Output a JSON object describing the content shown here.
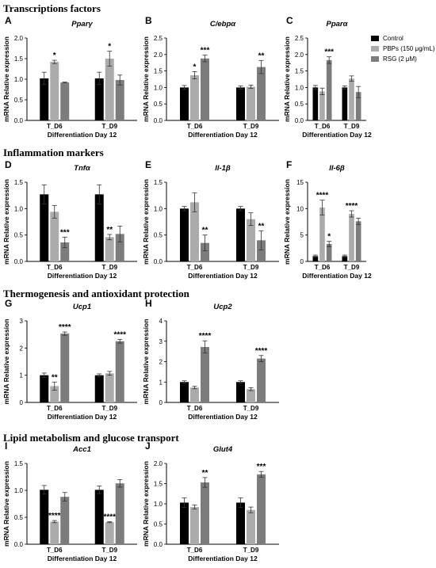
{
  "sections": [
    "Transcriptions factors",
    "Inflammation markers",
    "Thermogenesis and antioxidant protection",
    "Lipid metabolism and glucose transport"
  ],
  "legend": [
    {
      "label": "Control",
      "color": "#000000"
    },
    {
      "label": "PBPs (150 μg/mL)",
      "color": "#ababab"
    },
    {
      "label": "RSG (2 μM)",
      "color": "#7c7c7c"
    }
  ],
  "chart_data": [
    {
      "type": "bar",
      "panel": "A",
      "title": "Pparγ",
      "xlabel": "Differentiation Day 12",
      "ylabel": "mRNA Relative expression",
      "categories": [
        "T_D6",
        "T_D9"
      ],
      "ylim": [
        0,
        2.0
      ],
      "yticks": [
        "0.0",
        "0.5",
        "1.0",
        "1.5",
        "2.0"
      ],
      "series": [
        {
          "name": "Control",
          "values": [
            1.02,
            1.02
          ],
          "errors": [
            0.15,
            0.15
          ]
        },
        {
          "name": "PBPs (150 μg/mL)",
          "values": [
            1.42,
            1.5
          ],
          "errors": [
            0.04,
            0.18
          ]
        },
        {
          "name": "RSG (2 μM)",
          "values": [
            0.92,
            0.98
          ],
          "errors": [
            0.01,
            0.12
          ]
        }
      ],
      "significance": [
        {
          "group": 0,
          "series": 1,
          "label": "*"
        },
        {
          "group": 1,
          "series": 1,
          "label": "*"
        }
      ]
    },
    {
      "type": "bar",
      "panel": "B",
      "title": "C/ebpα",
      "xlabel": "Differentiation Day 12",
      "ylabel": "mRNA Relative expression",
      "categories": [
        "T_D6",
        "T_D9"
      ],
      "ylim": [
        0,
        2.5
      ],
      "yticks": [
        "0.0",
        "0.5",
        "1.0",
        "1.5",
        "2.0",
        "2.5"
      ],
      "series": [
        {
          "name": "Control",
          "values": [
            1.0,
            1.0
          ],
          "errors": [
            0.06,
            0.05
          ]
        },
        {
          "name": "PBPs (150 μg/mL)",
          "values": [
            1.37,
            1.02
          ],
          "errors": [
            0.11,
            0.05
          ]
        },
        {
          "name": "RSG (2 μM)",
          "values": [
            1.88,
            1.62
          ],
          "errors": [
            0.1,
            0.2
          ]
        }
      ],
      "significance": [
        {
          "group": 0,
          "series": 1,
          "label": "*"
        },
        {
          "group": 0,
          "series": 2,
          "label": "***"
        },
        {
          "group": 1,
          "series": 2,
          "label": "**"
        }
      ]
    },
    {
      "type": "bar",
      "panel": "C",
      "title": "Pparα",
      "xlabel": "Differentiation Day 12",
      "ylabel": "mRNA Relative expression",
      "categories": [
        "T_D6",
        "T_D9"
      ],
      "ylim": [
        0,
        2.5
      ],
      "yticks": [
        "0.0",
        "0.5",
        "1.0",
        "1.5",
        "2.0",
        "2.5"
      ],
      "series": [
        {
          "name": "Control",
          "values": [
            1.0,
            1.0
          ],
          "errors": [
            0.06,
            0.05
          ]
        },
        {
          "name": "PBPs (150 μg/mL)",
          "values": [
            0.88,
            1.27
          ],
          "errors": [
            0.1,
            0.08
          ]
        },
        {
          "name": "RSG (2 μM)",
          "values": [
            1.83,
            0.86
          ],
          "errors": [
            0.1,
            0.17
          ]
        }
      ],
      "significance": [
        {
          "group": 0,
          "series": 2,
          "label": "***"
        }
      ]
    },
    {
      "type": "bar",
      "panel": "D",
      "title": "Tnfα",
      "xlabel": "Differentiation Day 12",
      "ylabel": "mRNA Relative expression",
      "categories": [
        "T_D6",
        "T_D9"
      ],
      "ylim": [
        0,
        1.5
      ],
      "yticks": [
        "0.0",
        "0.5",
        "1.0",
        "1.5"
      ],
      "series": [
        {
          "name": "Control",
          "values": [
            1.27,
            1.27
          ],
          "errors": [
            0.18,
            0.18
          ]
        },
        {
          "name": "PBPs (150 μg/mL)",
          "values": [
            0.94,
            0.46
          ],
          "errors": [
            0.12,
            0.05
          ]
        },
        {
          "name": "RSG (2 μM)",
          "values": [
            0.36,
            0.52
          ],
          "errors": [
            0.1,
            0.15
          ]
        }
      ],
      "significance": [
        {
          "group": 0,
          "series": 2,
          "label": "***"
        },
        {
          "group": 1,
          "series": 1,
          "label": "**"
        }
      ]
    },
    {
      "type": "bar",
      "panel": "E",
      "title": "Il-1β",
      "xlabel": "Differentiation Day 12",
      "ylabel": "mRNA Relative expression",
      "categories": [
        "T_D6",
        "T_D9"
      ],
      "ylim": [
        0,
        1.5
      ],
      "yticks": [
        "0.0",
        "0.5",
        "1.0",
        "1.5"
      ],
      "series": [
        {
          "name": "Control",
          "values": [
            1.0,
            1.0
          ],
          "errors": [
            0.04,
            0.04
          ]
        },
        {
          "name": "PBPs (150 μg/mL)",
          "values": [
            1.12,
            0.8
          ],
          "errors": [
            0.18,
            0.12
          ]
        },
        {
          "name": "RSG (2 μM)",
          "values": [
            0.35,
            0.4
          ],
          "errors": [
            0.15,
            0.18
          ]
        }
      ],
      "significance": [
        {
          "group": 0,
          "series": 2,
          "label": "**"
        },
        {
          "group": 1,
          "series": 2,
          "label": "**"
        }
      ]
    },
    {
      "type": "bar",
      "panel": "F",
      "title": "Il-6β",
      "xlabel": "Differentiation Day 12",
      "ylabel": "mRNA Relative expression",
      "categories": [
        "T_D6",
        "T_D9"
      ],
      "ylim": [
        0,
        15
      ],
      "yticks": [
        "0",
        "5",
        "10",
        "15"
      ],
      "series": [
        {
          "name": "Control",
          "values": [
            1.0,
            1.0
          ],
          "errors": [
            0.2,
            0.2
          ]
        },
        {
          "name": "PBPs (150 μg/mL)",
          "values": [
            10.2,
            9.0
          ],
          "errors": [
            1.4,
            0.6
          ]
        },
        {
          "name": "RSG (2 μM)",
          "values": [
            3.3,
            7.6
          ],
          "errors": [
            0.5,
            0.6
          ]
        }
      ],
      "significance": [
        {
          "group": 0,
          "series": 1,
          "label": "****"
        },
        {
          "group": 0,
          "series": 2,
          "label": "*"
        },
        {
          "group": 1,
          "series": 1,
          "label": "****"
        }
      ]
    },
    {
      "type": "bar",
      "panel": "G",
      "title": "Ucp1",
      "xlabel": "Differentiation Day 12",
      "ylabel": "mRNA Relative expression",
      "categories": [
        "T_D6",
        "T_D9"
      ],
      "ylim": [
        0,
        3
      ],
      "yticks": [
        "0",
        "1",
        "2",
        "3"
      ],
      "series": [
        {
          "name": "Control",
          "values": [
            1.0,
            1.0
          ],
          "errors": [
            0.08,
            0.05
          ]
        },
        {
          "name": "PBPs (150 μg/mL)",
          "values": [
            0.6,
            1.07
          ],
          "errors": [
            0.15,
            0.07
          ]
        },
        {
          "name": "RSG (2 μM)",
          "values": [
            2.53,
            2.25
          ],
          "errors": [
            0.06,
            0.07
          ]
        }
      ],
      "significance": [
        {
          "group": 0,
          "series": 1,
          "label": "**"
        },
        {
          "group": 0,
          "series": 2,
          "label": "****"
        },
        {
          "group": 1,
          "series": 2,
          "label": "****"
        }
      ]
    },
    {
      "type": "bar",
      "panel": "H",
      "title": "Ucp2",
      "xlabel": "Differentiation Day 12",
      "ylabel": "mRNA Relative expression",
      "categories": [
        "T_D6",
        "T_D9"
      ],
      "ylim": [
        0,
        4
      ],
      "yticks": [
        "0",
        "1",
        "2",
        "3",
        "4"
      ],
      "series": [
        {
          "name": "Control",
          "values": [
            1.0,
            1.0
          ],
          "errors": [
            0.06,
            0.06
          ]
        },
        {
          "name": "PBPs (150 μg/mL)",
          "values": [
            0.73,
            0.65
          ],
          "errors": [
            0.06,
            0.07
          ]
        },
        {
          "name": "RSG (2 μM)",
          "values": [
            2.72,
            2.15
          ],
          "errors": [
            0.3,
            0.15
          ]
        }
      ],
      "significance": [
        {
          "group": 0,
          "series": 2,
          "label": "****"
        },
        {
          "group": 1,
          "series": 2,
          "label": "****"
        }
      ]
    },
    {
      "type": "bar",
      "panel": "I",
      "title": "Acc1",
      "xlabel": "Differentiation Day 12",
      "ylabel": "mRNA Relative expression",
      "categories": [
        "T_D6",
        "T_D9"
      ],
      "ylim": [
        0,
        1.5
      ],
      "yticks": [
        "0.0",
        "0.5",
        "1.0",
        "1.5"
      ],
      "series": [
        {
          "name": "Control",
          "values": [
            1.01,
            1.01
          ],
          "errors": [
            0.08,
            0.07
          ]
        },
        {
          "name": "PBPs (150 μg/mL)",
          "values": [
            0.42,
            0.41
          ],
          "errors": [
            0.02,
            0.01
          ]
        },
        {
          "name": "RSG (2 μM)",
          "values": [
            0.88,
            1.13
          ],
          "errors": [
            0.08,
            0.07
          ]
        }
      ],
      "significance": [
        {
          "group": 0,
          "series": 1,
          "label": "****"
        },
        {
          "group": 1,
          "series": 1,
          "label": "****"
        }
      ]
    },
    {
      "type": "bar",
      "panel": "J",
      "title": "Glut4",
      "xlabel": "Differentiation Day 12",
      "ylabel": "mRNA Relative expression",
      "categories": [
        "T_D6",
        "T_D9"
      ],
      "ylim": [
        0,
        2.0
      ],
      "yticks": [
        "0.0",
        "0.5",
        "1.0",
        "1.5",
        "2.0"
      ],
      "series": [
        {
          "name": "Control",
          "values": [
            1.03,
            1.03
          ],
          "errors": [
            0.12,
            0.12
          ]
        },
        {
          "name": "PBPs (150 μg/mL)",
          "values": [
            0.92,
            0.85
          ],
          "errors": [
            0.05,
            0.07
          ]
        },
        {
          "name": "RSG (2 μM)",
          "values": [
            1.53,
            1.73
          ],
          "errors": [
            0.12,
            0.07
          ]
        }
      ],
      "significance": [
        {
          "group": 0,
          "series": 2,
          "label": "**"
        },
        {
          "group": 1,
          "series": 2,
          "label": "***"
        }
      ]
    }
  ]
}
